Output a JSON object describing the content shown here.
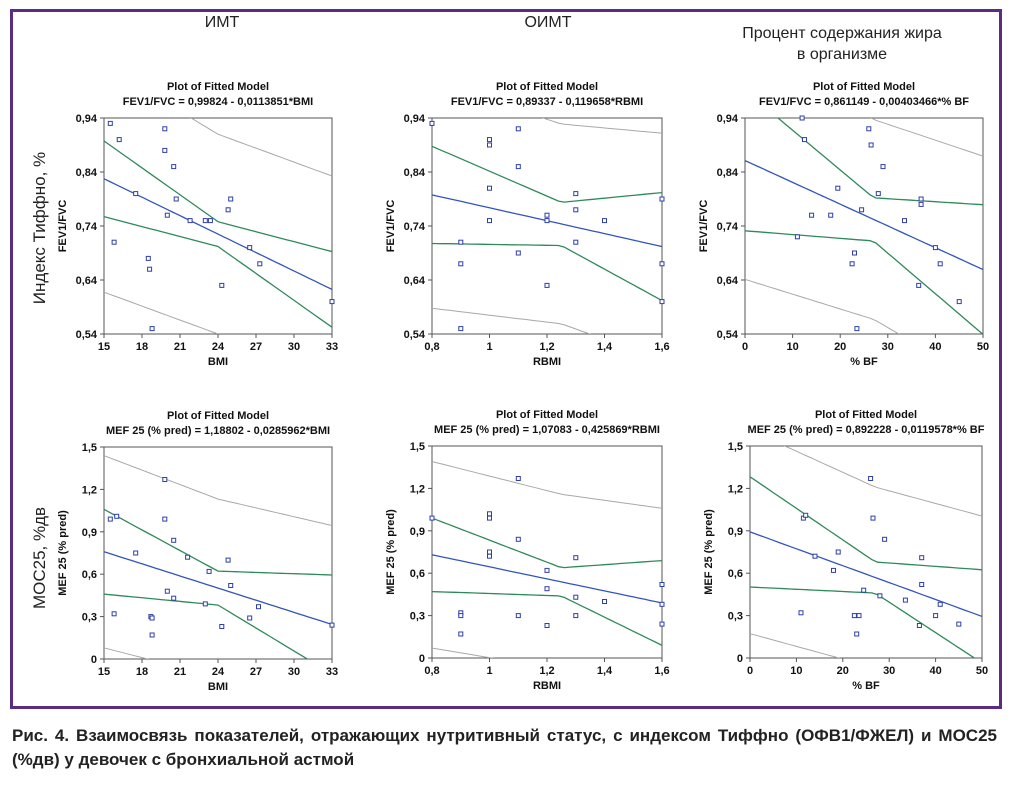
{
  "column_headers": [
    "ИМТ",
    "ОИМТ",
    "Процент содержания жира в организме"
  ],
  "row_headers": [
    "Индекс Тиффно, %",
    "МОС25, %дв"
  ],
  "caption": "Рис. 4. Взаимосвязь показателей, отражающих нутритивный статус, с индексом Тиффно (ОФВ1/ФЖЕЛ) и МОС25 (%дв) у девочек с бронхиальной астмой",
  "colors": {
    "frame": "#5b2c83",
    "points": "#2f3fa8",
    "fit_line": "#3355bb",
    "confidence": "#2f8a5a",
    "prediction": "#a8a8a8"
  },
  "chart_data": [
    {
      "type": "scatter",
      "title": "Plot of Fitted Model",
      "subtitle": "FEV1/FVC = 0,99824 - 0,0113851*BMI",
      "xlabel": "BMI",
      "ylabel": "FEV1/FVC",
      "xlim": [
        15,
        33
      ],
      "ylim": [
        0.54,
        0.94
      ],
      "xticks": [
        15,
        18,
        21,
        24,
        27,
        30,
        33
      ],
      "xtick_labels": [
        "15",
        "18",
        "21",
        "24",
        "27",
        "30",
        "33"
      ],
      "yticks": [
        0.54,
        0.64,
        0.74,
        0.84,
        0.94
      ],
      "ytick_labels": [
        "0,54",
        "0,64",
        "0,74",
        "0,84",
        "0,94"
      ],
      "fit": {
        "intercept": 0.99824,
        "slope": -0.0113851
      },
      "band": {
        "ci": [
          [
            15,
            0.07
          ],
          [
            24,
            0.023
          ],
          [
            33,
            0.07
          ]
        ],
        "pi": [
          [
            15,
            0.21
          ],
          [
            24,
            0.185
          ],
          [
            33,
            0.21
          ]
        ]
      },
      "points": [
        [
          15.5,
          0.93
        ],
        [
          16.2,
          0.9
        ],
        [
          15.8,
          0.71
        ],
        [
          17.5,
          0.8
        ],
        [
          18.5,
          0.68
        ],
        [
          18.6,
          0.66
        ],
        [
          18.8,
          0.55
        ],
        [
          19.8,
          0.92
        ],
        [
          19.8,
          0.88
        ],
        [
          20.0,
          0.76
        ],
        [
          20.5,
          0.85
        ],
        [
          20.7,
          0.79
        ],
        [
          21.8,
          0.75
        ],
        [
          23.0,
          0.75
        ],
        [
          23.4,
          0.75
        ],
        [
          24.3,
          0.63
        ],
        [
          24.8,
          0.77
        ],
        [
          25.0,
          0.79
        ],
        [
          26.5,
          0.7
        ],
        [
          27.3,
          0.67
        ],
        [
          33.0,
          0.6
        ]
      ]
    },
    {
      "type": "scatter",
      "title": "Plot of Fitted Model",
      "subtitle": "FEV1/FVC = 0,89337 - 0,119658*RBMI",
      "xlabel": "RBMI",
      "ylabel": "FEV1/FVC",
      "xlim": [
        0.8,
        1.6
      ],
      "ylim": [
        0.54,
        0.94
      ],
      "xticks": [
        0.8,
        1.0,
        1.2,
        1.4,
        1.6
      ],
      "xtick_labels": [
        "0,8",
        "1",
        "1,2",
        "1,4",
        "1,6"
      ],
      "yticks": [
        0.54,
        0.64,
        0.74,
        0.84,
        0.94
      ],
      "ytick_labels": [
        "0,54",
        "0,64",
        "0,74",
        "0,84",
        "0,94"
      ],
      "fit": {
        "intercept": 0.89337,
        "slope": -0.119658
      },
      "band": {
        "ci": [
          [
            0.8,
            0.09
          ],
          [
            1.25,
            0.04
          ],
          [
            1.6,
            0.1
          ]
        ],
        "pi": [
          [
            0.8,
            0.21
          ],
          [
            1.25,
            0.185
          ],
          [
            1.6,
            0.21
          ]
        ]
      },
      "points": [
        [
          0.8,
          0.93
        ],
        [
          0.9,
          0.71
        ],
        [
          0.9,
          0.67
        ],
        [
          0.9,
          0.55
        ],
        [
          1.0,
          0.9
        ],
        [
          1.0,
          0.89
        ],
        [
          1.0,
          0.81
        ],
        [
          1.0,
          0.75
        ],
        [
          1.1,
          0.92
        ],
        [
          1.1,
          0.85
        ],
        [
          1.1,
          0.69
        ],
        [
          1.2,
          0.76
        ],
        [
          1.2,
          0.75
        ],
        [
          1.2,
          0.63
        ],
        [
          1.3,
          0.8
        ],
        [
          1.3,
          0.77
        ],
        [
          1.3,
          0.71
        ],
        [
          1.4,
          0.75
        ],
        [
          1.6,
          0.79
        ],
        [
          1.6,
          0.67
        ],
        [
          1.6,
          0.6
        ]
      ]
    },
    {
      "type": "scatter",
      "title": "Plot of Fitted Model",
      "subtitle": "FEV1/FVC = 0,861149 - 0,00403466*% BF",
      "xlabel": "% BF",
      "ylabel": "FEV1/FVC",
      "xlim": [
        0,
        50
      ],
      "ylim": [
        0.54,
        0.94
      ],
      "xticks": [
        0,
        10,
        20,
        30,
        40,
        50
      ],
      "xtick_labels": [
        "0",
        "10",
        "20",
        "30",
        "40",
        "50"
      ],
      "yticks": [
        0.54,
        0.64,
        0.74,
        0.84,
        0.94
      ],
      "ytick_labels": [
        "0,54",
        "0,64",
        "0,74",
        "0,84",
        "0,94"
      ],
      "fit": {
        "intercept": 0.861149,
        "slope": -0.00403466
      },
      "band": {
        "ci": [
          [
            0,
            0.13
          ],
          [
            27,
            0.04
          ],
          [
            50,
            0.12
          ]
        ],
        "pi": [
          [
            0,
            0.22
          ],
          [
            27,
            0.185
          ],
          [
            50,
            0.21
          ]
        ]
      },
      "points": [
        [
          11.0,
          0.72
        ],
        [
          12.0,
          0.94
        ],
        [
          12.5,
          0.9
        ],
        [
          14.0,
          0.76
        ],
        [
          18.0,
          0.76
        ],
        [
          19.5,
          0.81
        ],
        [
          22.5,
          0.67
        ],
        [
          23.0,
          0.69
        ],
        [
          23.5,
          0.55
        ],
        [
          24.5,
          0.77
        ],
        [
          26.0,
          0.92
        ],
        [
          26.5,
          0.89
        ],
        [
          28.0,
          0.8
        ],
        [
          29.0,
          0.85
        ],
        [
          33.5,
          0.75
        ],
        [
          36.5,
          0.63
        ],
        [
          37.0,
          0.79
        ],
        [
          37.0,
          0.78
        ],
        [
          40.0,
          0.7
        ],
        [
          41.0,
          0.67
        ],
        [
          45.0,
          0.6
        ]
      ]
    },
    {
      "type": "scatter",
      "title": "Plot of Fitted Model",
      "subtitle": "MEF 25 (% pred) = 1,18802 - 0,0285962*BMI",
      "xlabel": "BMI",
      "ylabel": "MEF 25 (% pred)",
      "xlim": [
        15,
        33
      ],
      "ylim": [
        0,
        1.5
      ],
      "xticks": [
        15,
        18,
        21,
        24,
        27,
        30,
        33
      ],
      "xtick_labels": [
        "15",
        "18",
        "21",
        "24",
        "27",
        "30",
        "33"
      ],
      "yticks": [
        0,
        0.3,
        0.6,
        0.9,
        1.2,
        1.5
      ],
      "ytick_labels": [
        "0",
        "0,3",
        "0,6",
        "0,9",
        "1,2",
        "1,5"
      ],
      "fit": {
        "intercept": 1.18802,
        "slope": -0.0285962
      },
      "band": {
        "ci": [
          [
            15,
            0.3
          ],
          [
            24,
            0.12
          ],
          [
            33,
            0.35
          ]
        ],
        "pi": [
          [
            15,
            0.68
          ],
          [
            24,
            0.63
          ],
          [
            33,
            0.7
          ]
        ]
      },
      "points": [
        [
          15.5,
          0.99
        ],
        [
          16.0,
          1.01
        ],
        [
          15.8,
          0.32
        ],
        [
          17.5,
          0.75
        ],
        [
          18.7,
          0.3
        ],
        [
          18.8,
          0.29
        ],
        [
          18.8,
          0.17
        ],
        [
          19.8,
          1.27
        ],
        [
          19.8,
          0.99
        ],
        [
          20.0,
          0.48
        ],
        [
          20.5,
          0.43
        ],
        [
          20.5,
          0.84
        ],
        [
          21.6,
          0.72
        ],
        [
          23.0,
          0.39
        ],
        [
          23.3,
          0.62
        ],
        [
          24.3,
          0.23
        ],
        [
          24.8,
          0.7
        ],
        [
          25.0,
          0.52
        ],
        [
          26.5,
          0.29
        ],
        [
          27.2,
          0.37
        ],
        [
          33.0,
          0.24
        ]
      ]
    },
    {
      "type": "scatter",
      "title": "Plot of Fitted Model",
      "subtitle": "MEF 25 (% pred) = 1,07083 - 0,425869*RBMI",
      "xlabel": "RBMI",
      "ylabel": "MEF 25 (% pred)",
      "xlim": [
        0.8,
        1.6
      ],
      "ylim": [
        0,
        1.5
      ],
      "xticks": [
        0.8,
        1.0,
        1.2,
        1.4,
        1.6
      ],
      "xtick_labels": [
        "0,8",
        "1",
        "1,2",
        "1,4",
        "1,6"
      ],
      "yticks": [
        0,
        0.3,
        0.6,
        0.9,
        1.2,
        1.5
      ],
      "ytick_labels": [
        "0",
        "0,3",
        "0,6",
        "0,9",
        "1,2",
        "1,5"
      ],
      "fit": {
        "intercept": 1.07083,
        "slope": -0.425869
      },
      "band": {
        "ci": [
          [
            0.8,
            0.26
          ],
          [
            1.25,
            0.1
          ],
          [
            1.6,
            0.3
          ]
        ],
        "pi": [
          [
            0.8,
            0.66
          ],
          [
            1.25,
            0.62
          ],
          [
            1.6,
            0.67
          ]
        ]
      },
      "points": [
        [
          0.8,
          0.99
        ],
        [
          0.9,
          0.32
        ],
        [
          0.9,
          0.3
        ],
        [
          0.9,
          0.17
        ],
        [
          1.0,
          1.02
        ],
        [
          1.0,
          0.99
        ],
        [
          1.0,
          0.75
        ],
        [
          1.0,
          0.72
        ],
        [
          1.1,
          1.27
        ],
        [
          1.1,
          0.84
        ],
        [
          1.1,
          0.3
        ],
        [
          1.2,
          0.62
        ],
        [
          1.2,
          0.49
        ],
        [
          1.2,
          0.23
        ],
        [
          1.3,
          0.71
        ],
        [
          1.3,
          0.43
        ],
        [
          1.3,
          0.3
        ],
        [
          1.4,
          0.4
        ],
        [
          1.6,
          0.52
        ],
        [
          1.6,
          0.38
        ],
        [
          1.6,
          0.24
        ]
      ]
    },
    {
      "type": "scatter",
      "title": "Plot of Fitted Model",
      "subtitle": "MEF 25 (% pred) = 0,892228 - 0,0119578*% BF",
      "xlabel": "% BF",
      "ylabel": "MEF 25 (% pred)",
      "xlim": [
        0,
        50
      ],
      "ylim": [
        0,
        1.5
      ],
      "xticks": [
        0,
        10,
        20,
        30,
        40,
        50
      ],
      "xtick_labels": [
        "0",
        "10",
        "20",
        "30",
        "40",
        "50"
      ],
      "yticks": [
        0,
        0.3,
        0.6,
        0.9,
        1.2,
        1.5
      ],
      "ytick_labels": [
        "0",
        "0,3",
        "0,6",
        "0,9",
        "1,2",
        "1,5"
      ],
      "fit": {
        "intercept": 0.892228,
        "slope": -0.0119578
      },
      "band": {
        "ci": [
          [
            0,
            0.39
          ],
          [
            27,
            0.11
          ],
          [
            50,
            0.33
          ]
        ],
        "pi": [
          [
            0,
            0.72
          ],
          [
            27,
            0.64
          ],
          [
            50,
            0.71
          ]
        ]
      },
      "points": [
        [
          11.0,
          0.32
        ],
        [
          11.5,
          0.99
        ],
        [
          12.0,
          1.01
        ],
        [
          14.0,
          0.72
        ],
        [
          18.0,
          0.62
        ],
        [
          19.0,
          0.75
        ],
        [
          22.5,
          0.3
        ],
        [
          23.0,
          0.17
        ],
        [
          23.5,
          0.3
        ],
        [
          24.5,
          0.48
        ],
        [
          26.0,
          1.27
        ],
        [
          26.5,
          0.99
        ],
        [
          28.0,
          0.44
        ],
        [
          29.0,
          0.84
        ],
        [
          33.5,
          0.41
        ],
        [
          36.5,
          0.23
        ],
        [
          37.0,
          0.71
        ],
        [
          37.0,
          0.52
        ],
        [
          40.0,
          0.3
        ],
        [
          41.0,
          0.38
        ],
        [
          45.0,
          0.24
        ]
      ]
    }
  ]
}
